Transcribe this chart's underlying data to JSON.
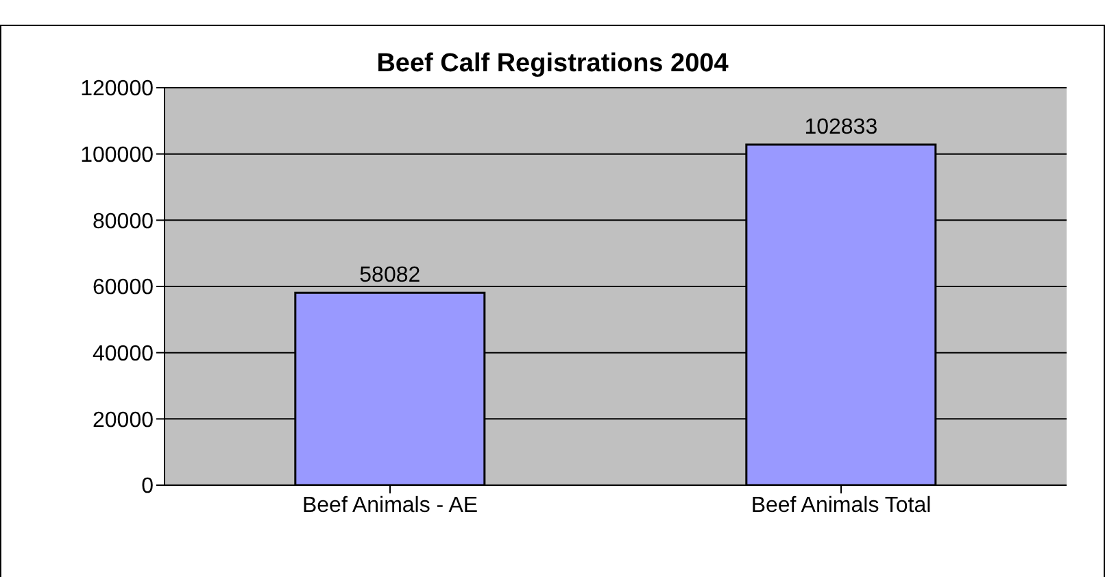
{
  "chart_data": {
    "type": "bar",
    "title": "Beef Calf Registrations 2004",
    "categories": [
      "Beef Animals - AE",
      "Beef Animals Total"
    ],
    "values": [
      58082,
      102833
    ],
    "color": "#9999ff",
    "ylim": [
      0,
      120000
    ],
    "yticks": [
      0,
      20000,
      40000,
      60000,
      80000,
      100000,
      120000
    ],
    "grid": "y",
    "data_labels": true,
    "legend": false
  }
}
